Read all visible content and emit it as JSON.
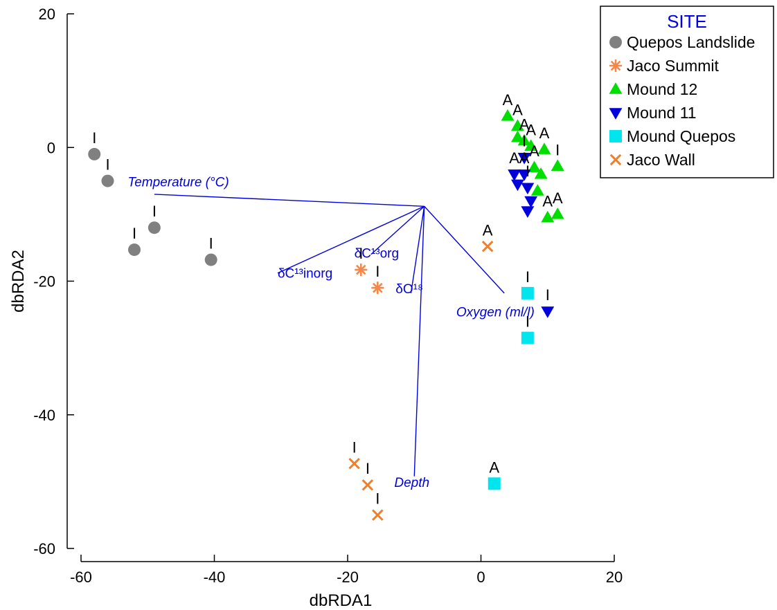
{
  "chart_data": {
    "type": "scatter",
    "xlabel": "dbRDA1",
    "ylabel": "dbRDA2",
    "xlim": [
      -60,
      20
    ],
    "ylim": [
      -60,
      20
    ],
    "xticks": [
      -60,
      -40,
      -20,
      0,
      20
    ],
    "yticks": [
      -60,
      -40,
      -20,
      0,
      20
    ],
    "grid": false,
    "legend": {
      "title": "SITE",
      "placement": "top-right",
      "title_color": "#0000ee"
    },
    "series": [
      {
        "name": "Quepos Landslide",
        "marker": "circle",
        "color": "#808080",
        "points": [
          {
            "x": -58.0,
            "y": -1.0,
            "label": "I"
          },
          {
            "x": -56.0,
            "y": -5.0,
            "label": "I"
          },
          {
            "x": -49.0,
            "y": -12.0,
            "label": "I"
          },
          {
            "x": -52.0,
            "y": -15.3,
            "label": "I"
          },
          {
            "x": -40.5,
            "y": -16.8,
            "label": "I"
          }
        ]
      },
      {
        "name": "Jaco Summit",
        "marker": "asterisk",
        "color": "#f4884a",
        "points": [
          {
            "x": -18.0,
            "y": -18.3,
            "label": "I"
          },
          {
            "x": -15.5,
            "y": -21.0,
            "label": "I"
          }
        ]
      },
      {
        "name": "Mound 12",
        "marker": "triangle-up",
        "color": "#00dd00",
        "points": [
          {
            "x": 4.0,
            "y": 4.7,
            "label": "A"
          },
          {
            "x": 5.5,
            "y": 3.2,
            "label": "A"
          },
          {
            "x": 6.5,
            "y": 1.0,
            "label": "A"
          },
          {
            "x": 7.5,
            "y": 0.2,
            "label": "A"
          },
          {
            "x": 9.5,
            "y": -0.3,
            "label": "A"
          },
          {
            "x": 5.5,
            "y": 1.5,
            "label": ""
          },
          {
            "x": 11.5,
            "y": -2.8,
            "label": "I"
          },
          {
            "x": 8.0,
            "y": -3.0,
            "label": "A"
          },
          {
            "x": 9.0,
            "y": -4.0,
            "label": ""
          },
          {
            "x": 8.5,
            "y": -6.5,
            "label": ""
          },
          {
            "x": 10.0,
            "y": -10.5,
            "label": "A"
          },
          {
            "x": 11.5,
            "y": -10.0,
            "label": "A"
          }
        ]
      },
      {
        "name": "Mound 11",
        "marker": "triangle-down",
        "color": "#0000dd",
        "points": [
          {
            "x": 6.5,
            "y": -1.5,
            "label": "I"
          },
          {
            "x": 5.0,
            "y": -4.0,
            "label": "A"
          },
          {
            "x": 6.5,
            "y": -4.0,
            "label": "A"
          },
          {
            "x": 5.5,
            "y": -5.5,
            "label": ""
          },
          {
            "x": 7.0,
            "y": -6.0,
            "label": "I"
          },
          {
            "x": 7.5,
            "y": -8.0,
            "label": ""
          },
          {
            "x": 7.0,
            "y": -9.5,
            "label": ""
          },
          {
            "x": 10.0,
            "y": -24.5,
            "label": "I"
          }
        ]
      },
      {
        "name": "Mound Quepos",
        "marker": "square",
        "color": "#00e5ee",
        "points": [
          {
            "x": 7.0,
            "y": -21.8,
            "label": "I"
          },
          {
            "x": 7.0,
            "y": -28.5,
            "label": "I"
          },
          {
            "x": 2.0,
            "y": -50.3,
            "label": "A"
          }
        ]
      },
      {
        "name": "Jaco Wall",
        "marker": "x",
        "color": "#f07f2a",
        "points": [
          {
            "x": 1.0,
            "y": -14.8,
            "label": "A"
          },
          {
            "x": -19.0,
            "y": -47.3,
            "label": "I"
          },
          {
            "x": -17.0,
            "y": -50.5,
            "label": "I"
          },
          {
            "x": -15.5,
            "y": -55.0,
            "label": "I"
          }
        ]
      }
    ],
    "vectors": {
      "origin": {
        "x": -8.5,
        "y": -8.8
      },
      "color": "#0000dd",
      "items": [
        {
          "label": "Temperature (°C)",
          "end": {
            "x": -49.0,
            "y": -7.0
          },
          "label_at": {
            "x": -53.0,
            "y": -5.8
          },
          "style": "italic"
        },
        {
          "label": "δC¹³inorg",
          "end": {
            "x": -30.5,
            "y": -18.8
          },
          "label_at": {
            "x": -30.5,
            "y": -19.5
          },
          "style": "normal"
        },
        {
          "label": "δC¹³org",
          "end": {
            "x": -16.5,
            "y": -16.0
          },
          "label_at": {
            "x": -19.0,
            "y": -16.5
          },
          "style": "normal"
        },
        {
          "label": "δO¹⁸",
          "end": {
            "x": -10.5,
            "y": -21.8
          },
          "label_at": {
            "x": -12.8,
            "y": -21.8
          },
          "style": "normal"
        },
        {
          "label": "Oxygen (ml/l)",
          "end": {
            "x": 3.5,
            "y": -21.8
          },
          "label_at": {
            "x": -3.7,
            "y": -25.3
          },
          "style": "italic"
        },
        {
          "label": "Depth",
          "end": {
            "x": -10.0,
            "y": -49.2
          },
          "label_at": {
            "x": -13.0,
            "y": -50.8
          },
          "style": "italic"
        }
      ]
    }
  }
}
